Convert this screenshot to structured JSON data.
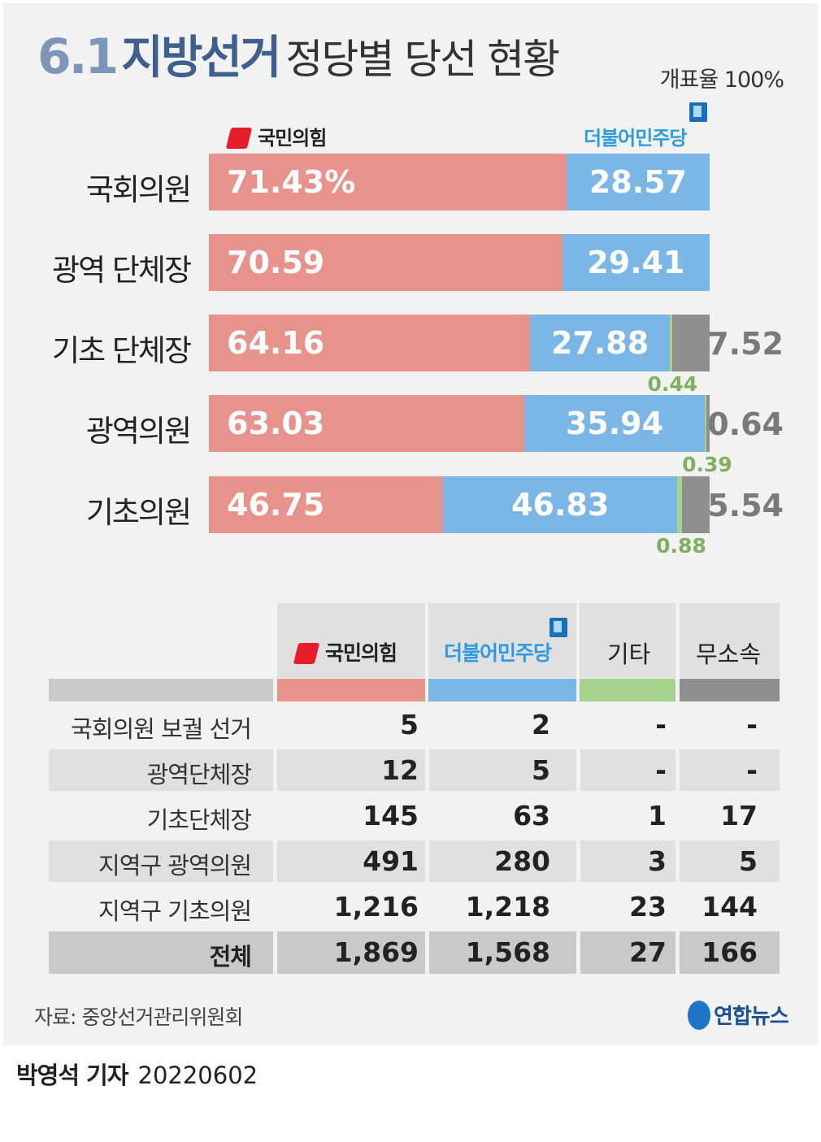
{
  "title": {
    "num": "6.1",
    "bold": "지방선거",
    "light": "정당별 당선 현황"
  },
  "count_rate": "개표율 100%",
  "parties": {
    "ppp": "국민의힘",
    "dp": "더불어민주당",
    "other": "기타",
    "independent": "무소속"
  },
  "colors": {
    "ppp": "#e8928c",
    "dp": "#7ab6e6",
    "other": "#a6d38b",
    "independent": "#8f8f8f"
  },
  "chart_data": {
    "type": "bar",
    "orientation": "horizontal",
    "stacked": true,
    "unit": "%",
    "categories": [
      "국회의원",
      "광역 단체장",
      "기초 단체장",
      "광역의원",
      "기초의원"
    ],
    "series": [
      {
        "name": "국민의힘",
        "values": [
          71.43,
          70.59,
          64.16,
          63.03,
          46.75
        ],
        "labels": [
          "71.43%",
          "70.59",
          "64.16",
          "63.03",
          "46.75"
        ]
      },
      {
        "name": "더불어민주당",
        "values": [
          28.57,
          29.41,
          27.88,
          35.94,
          46.83
        ],
        "labels": [
          "28.57",
          "29.41",
          "27.88",
          "35.94",
          "46.83"
        ]
      },
      {
        "name": "기타",
        "values": [
          0,
          0,
          0.44,
          0.39,
          0.88
        ],
        "labels": [
          "",
          "",
          "0.44",
          "0.39",
          "0.88"
        ]
      },
      {
        "name": "무소속",
        "values": [
          0,
          0,
          7.52,
          0.64,
          5.54
        ],
        "labels": [
          "",
          "",
          "7.52",
          "0.64",
          "5.54"
        ]
      }
    ],
    "xlim": [
      0,
      100
    ]
  },
  "table": {
    "rows": [
      {
        "label": "국회의원 보궐 선거",
        "values": [
          "5",
          "2",
          "-",
          "-"
        ]
      },
      {
        "label": "광역단체장",
        "values": [
          "12",
          "5",
          "-",
          "-"
        ]
      },
      {
        "label": "기초단체장",
        "values": [
          "145",
          "63",
          "1",
          "17"
        ]
      },
      {
        "label": "지역구 광역의원",
        "values": [
          "491",
          "280",
          "3",
          "5"
        ]
      },
      {
        "label": "지역구 기초의원",
        "values": [
          "1,216",
          "1,218",
          "23",
          "144"
        ]
      }
    ],
    "total": {
      "label": "전체",
      "values": [
        "1,869",
        "1,568",
        "27",
        "166"
      ]
    }
  },
  "source": "자료: 중앙선거관리위원회",
  "agency": "연합뉴스",
  "byline": {
    "reporter": "박영석 기자",
    "date": "20220602"
  }
}
